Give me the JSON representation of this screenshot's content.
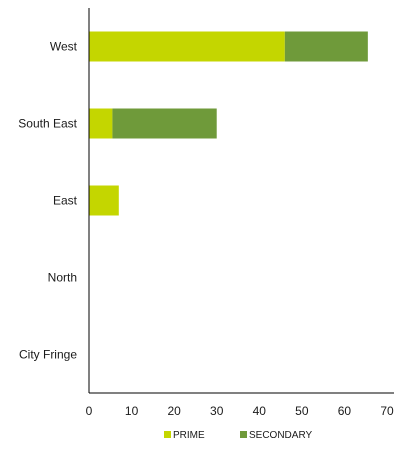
{
  "chart_data": {
    "type": "bar",
    "orientation": "horizontal",
    "stacked": true,
    "categories": [
      "West",
      "South East",
      "East",
      "North",
      "City Fringe"
    ],
    "series": [
      {
        "name": "PRIME",
        "values": [
          46,
          5.5,
          7,
          0,
          0
        ]
      },
      {
        "name": "SECONDARY",
        "values": [
          19.5,
          24.5,
          0,
          0,
          0
        ]
      }
    ],
    "xlim": [
      0,
      70
    ],
    "x_ticks": [
      "0",
      "10",
      "20",
      "30",
      "40",
      "50",
      "60",
      "70"
    ],
    "grid": false,
    "legend_position": "bottom",
    "colors": {
      "PRIME": "#c4d600",
      "SECONDARY": "#6f9a3a",
      "axis": "#000000"
    }
  }
}
